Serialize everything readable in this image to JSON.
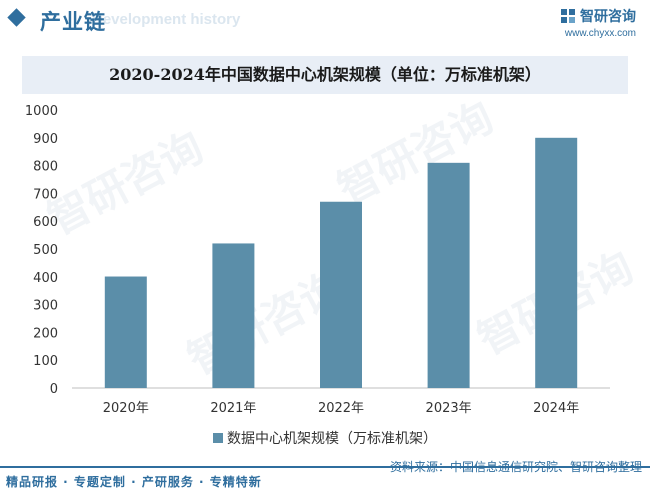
{
  "header": {
    "section_title": "产业链",
    "section_subtitle": "Development history",
    "brand_name": "智研咨询",
    "brand_url": "www.chyxx.com",
    "logo_icon": "zhiyan-logo-icon"
  },
  "watermark_text": "智研咨询",
  "chart_data": {
    "type": "bar",
    "title": "2020-2024年中国数据中心机架规模（单位：万标准机架）",
    "categories": [
      "2020年",
      "2021年",
      "2022年",
      "2023年",
      "2024年"
    ],
    "series": [
      {
        "name": "数据中心机架规模（万标准机架）",
        "values": [
          401,
          520,
          670,
          810,
          900
        ]
      }
    ],
    "ylim": [
      0,
      1000
    ],
    "yticks": [
      0,
      100,
      200,
      300,
      400,
      500,
      600,
      700,
      800,
      900,
      1000
    ],
    "grid": false,
    "legend": "bottom",
    "bar_color": "#5b8ea9"
  },
  "footer": {
    "tagline": "精品研报 · 专题定制 · 产研服务 · 专精特新",
    "source": "资料来源：中国信息通信研究院、智研咨询整理"
  },
  "colors": {
    "brand": "#2f6e9e",
    "bar": "#5b8ea9",
    "title_band": "#e8eef6"
  }
}
